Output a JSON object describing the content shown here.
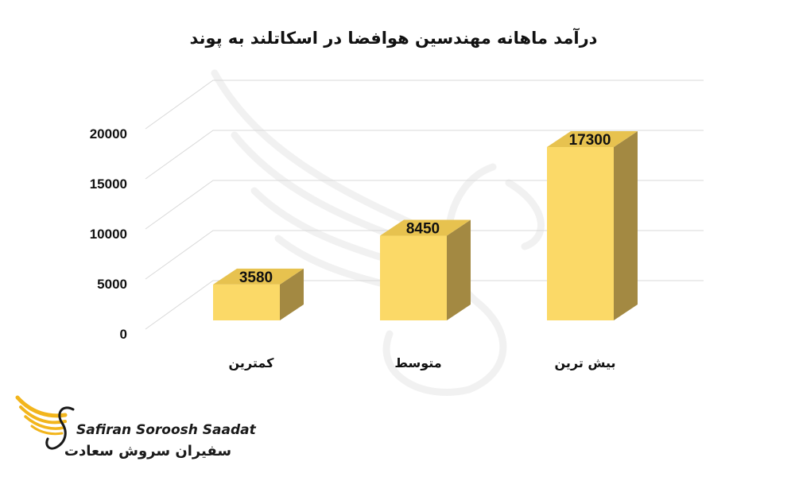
{
  "chart_data": {
    "type": "bar",
    "title": "درآمد ماهانه مهندسین هوافضا در اسکاتلند به پوند",
    "categories": [
      "کمترین",
      "متوسط",
      "بیش ترین"
    ],
    "values": [
      3580,
      8450,
      17300
    ],
    "data_labels": [
      "3580",
      "8450",
      "17300"
    ],
    "ylim": [
      0,
      20000
    ],
    "yticks": [
      0,
      5000,
      10000,
      15000,
      20000
    ],
    "ytick_labels": [
      "0",
      "5000",
      "10000",
      "15000",
      "20000"
    ],
    "grid": true,
    "legend": "none",
    "style": "3d-column",
    "colors": {
      "bar_front": "#fbd967",
      "bar_top": "#e7c24f",
      "bar_side": "#a38942",
      "grid": "#d9d9d9"
    }
  },
  "logo": {
    "name_latin": "Safiran Soroosh Saadat",
    "name_persian": "سفیران سروش سعادت",
    "colors": {
      "wing": "#f2b51c",
      "text": "#1a1a1a"
    }
  }
}
